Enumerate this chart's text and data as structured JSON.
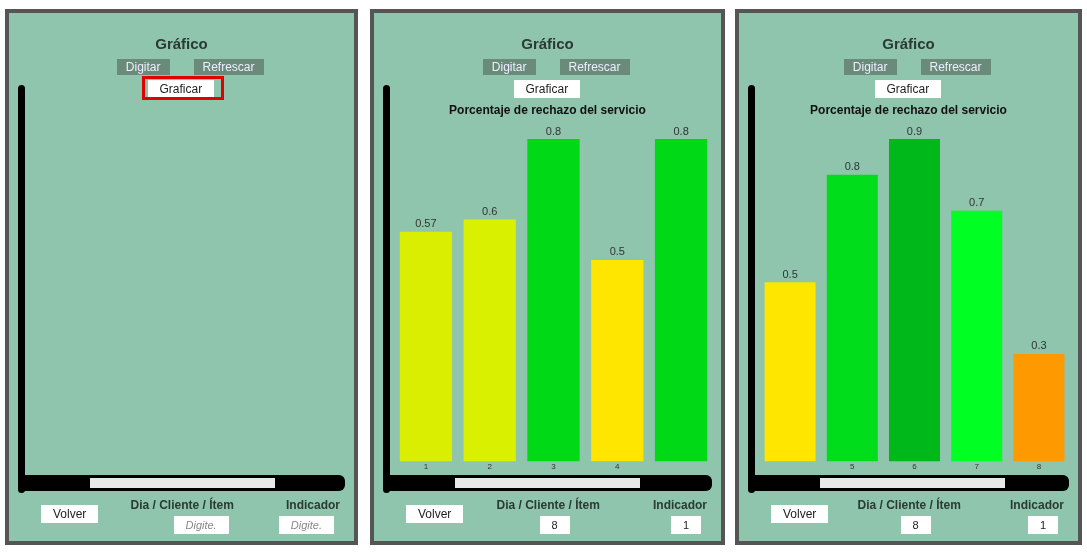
{
  "chart_data": [
    {
      "type": "other",
      "title": "Gráfico",
      "annotations": [
        "Digitar",
        "Refrescar",
        "Graficar",
        "Volver",
        "Dia / Cliente / Ítem",
        "Digite.",
        "Indicador",
        "Digite."
      ]
    },
    {
      "type": "bar",
      "title": "Gráfico",
      "subtitle": "Porcentaje de rechazo del servicio",
      "categories": [
        "1",
        "2",
        "3",
        "4",
        null
      ],
      "values": [
        0.57,
        0.6,
        0.8,
        0.5,
        0.8
      ],
      "colors": [
        "#d9ee00",
        "#d9f000",
        "#00d916",
        "#ffe600",
        "#00d916"
      ],
      "data_labels": true,
      "grid": false,
      "legend": false,
      "annotations": [
        "Digitar",
        "Refrescar",
        "Graficar",
        "Volver",
        "Dia / Cliente / Ítem",
        "8",
        "Indicador",
        "1"
      ]
    },
    {
      "type": "bar",
      "title": "Gráfico",
      "subtitle": "Porcentaje de rechazo del servicio",
      "categories": [
        null,
        "5",
        "6",
        "7",
        "8"
      ],
      "values": [
        0.5,
        0.8,
        0.9,
        0.7,
        0.3
      ],
      "colors": [
        "#ffe600",
        "#00dd1a",
        "#00b81a",
        "#00ff22",
        "#ff9900"
      ],
      "data_labels": true,
      "grid": false,
      "legend": false,
      "annotations": [
        "Digitar",
        "Refrescar",
        "Graficar",
        "Volver",
        "Dia / Cliente / Ítem",
        "8",
        "Indicador",
        "1"
      ]
    }
  ]
}
